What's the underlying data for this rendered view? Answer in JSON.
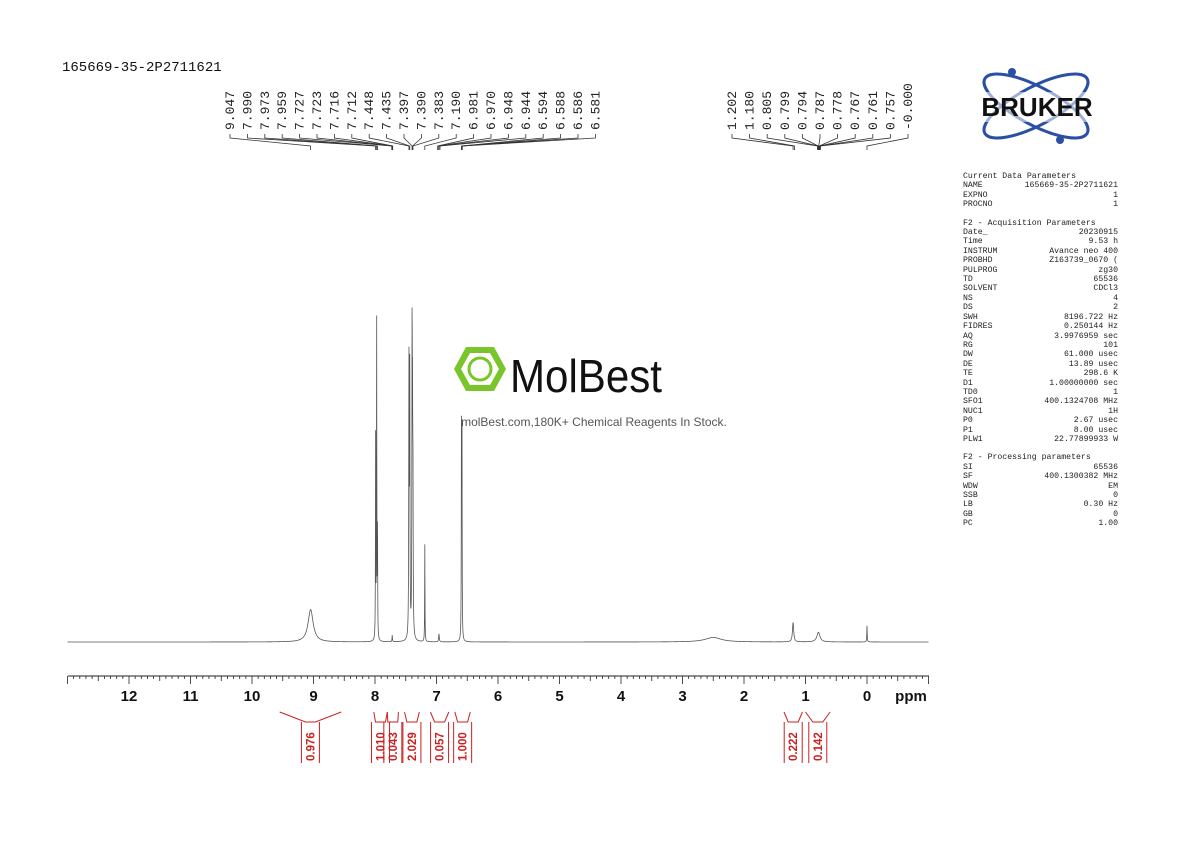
{
  "sample_id": "165669-35-2P2711621",
  "logo": {
    "text": "BRUKER"
  },
  "watermark": {
    "brand": "MolBest",
    "tagline": "molBest.com,180K+ Chemical Reagents In Stock."
  },
  "colors": {
    "spectrum": "#555555",
    "integral": "#cc1f1f",
    "bruker_blue": "#2b4fa3",
    "molbest_green": "#7ac62a",
    "text": "#111111"
  },
  "chart_data": {
    "type": "line",
    "title": "",
    "xlabel": "ppm",
    "xlim": [
      13.0,
      -1.0
    ],
    "x_inverted": true,
    "x_ticks": [
      12,
      11,
      10,
      9,
      8,
      7,
      6,
      5,
      4,
      3,
      2,
      1,
      0
    ],
    "peak_labels_left": [
      "9.047",
      "7.990",
      "7.973",
      "7.959",
      "7.727",
      "7.723",
      "7.716",
      "7.712",
      "7.448",
      "7.435",
      "7.397",
      "7.390",
      "7.383",
      "7.190",
      "6.981",
      "6.970",
      "6.948",
      "6.944",
      "6.594",
      "6.588",
      "6.586",
      "6.581"
    ],
    "peak_labels_right": [
      "1.202",
      "1.180",
      "0.805",
      "0.799",
      "0.794",
      "0.787",
      "0.778",
      "0.767",
      "0.761",
      "0.757",
      "-0.000"
    ],
    "peaks": [
      {
        "ppm": 9.047,
        "height": 0.1,
        "width": 0.05
      },
      {
        "ppm": 7.99,
        "height": 0.62,
        "width": 0.003
      },
      {
        "ppm": 7.973,
        "height": 1.0,
        "width": 0.003
      },
      {
        "ppm": 7.959,
        "height": 0.35,
        "width": 0.003
      },
      {
        "ppm": 7.72,
        "height": 0.02,
        "width": 0.004
      },
      {
        "ppm": 7.448,
        "height": 0.84,
        "width": 0.004
      },
      {
        "ppm": 7.435,
        "height": 0.8,
        "width": 0.004
      },
      {
        "ppm": 7.397,
        "height": 0.88,
        "width": 0.004
      },
      {
        "ppm": 7.39,
        "height": 0.55,
        "width": 0.004
      },
      {
        "ppm": 7.383,
        "height": 0.42,
        "width": 0.004
      },
      {
        "ppm": 7.19,
        "height": 0.3,
        "width": 0.003
      },
      {
        "ppm": 6.96,
        "height": 0.025,
        "width": 0.006
      },
      {
        "ppm": 6.594,
        "height": 0.7,
        "width": 0.003
      },
      {
        "ppm": 6.586,
        "height": 0.68,
        "width": 0.003
      },
      {
        "ppm": 2.5,
        "height": 0.014,
        "width": 0.16
      },
      {
        "ppm": 1.202,
        "height": 0.06,
        "width": 0.012
      },
      {
        "ppm": 0.79,
        "height": 0.03,
        "width": 0.03
      },
      {
        "ppm": 0.0,
        "height": 0.05,
        "width": 0.004
      }
    ],
    "integrals": [
      {
        "value": "0.976",
        "from": 9.55,
        "to": 8.55
      },
      {
        "value": "1.010",
        "from": 8.02,
        "to": 7.8
      },
      {
        "value": "0.043",
        "from": 7.8,
        "to": 7.62
      },
      {
        "value": "2.029",
        "from": 7.52,
        "to": 7.28
      },
      {
        "value": "0.057",
        "from": 7.1,
        "to": 6.8
      },
      {
        "value": "1.000",
        "from": 6.7,
        "to": 6.45
      },
      {
        "value": "0.222",
        "from": 1.35,
        "to": 1.05
      },
      {
        "value": "0.142",
        "from": 1.0,
        "to": 0.6
      }
    ]
  },
  "params": {
    "current": {
      "title": "Current Data Parameters",
      "rows": [
        [
          "NAME",
          "165669-35-2P2711621"
        ],
        [
          "EXPNO",
          "1"
        ],
        [
          "PROCNO",
          "1"
        ]
      ]
    },
    "acquisition": {
      "title": "F2 - Acquisition Parameters",
      "rows": [
        [
          "Date_",
          "20230915"
        ],
        [
          "Time",
          "9.53 h"
        ],
        [
          "INSTRUM",
          "Avance neo 400"
        ],
        [
          "PROBHD",
          "Z163739_0670 ("
        ],
        [
          "PULPROG",
          "zg30"
        ],
        [
          "TD",
          "65536"
        ],
        [
          "SOLVENT",
          "CDCl3"
        ],
        [
          "NS",
          "4"
        ],
        [
          "DS",
          "2"
        ],
        [
          "SWH",
          "8196.722 Hz"
        ],
        [
          "FIDRES",
          "0.250144 Hz"
        ],
        [
          "AQ",
          "3.9976959 sec"
        ],
        [
          "RG",
          "101"
        ],
        [
          "DW",
          "61.000 usec"
        ],
        [
          "DE",
          "13.89 usec"
        ],
        [
          "TE",
          "298.6 K"
        ],
        [
          "D1",
          "1.00000000 sec"
        ],
        [
          "TD0",
          "1"
        ],
        [
          "SFO1",
          "400.1324708 MHz"
        ],
        [
          "NUC1",
          "1H"
        ],
        [
          "P0",
          "2.67 usec"
        ],
        [
          "P1",
          "8.00 usec"
        ],
        [
          "PLW1",
          "22.77899933 W"
        ]
      ]
    },
    "processing": {
      "title": "F2 - Processing parameters",
      "rows": [
        [
          "SI",
          "65536"
        ],
        [
          "SF",
          "400.1300382 MHz"
        ],
        [
          "WDW",
          "EM"
        ],
        [
          "SSB",
          "0"
        ],
        [
          "LB",
          "0.30 Hz"
        ],
        [
          "GB",
          "0"
        ],
        [
          "PC",
          "1.00"
        ]
      ]
    }
  }
}
